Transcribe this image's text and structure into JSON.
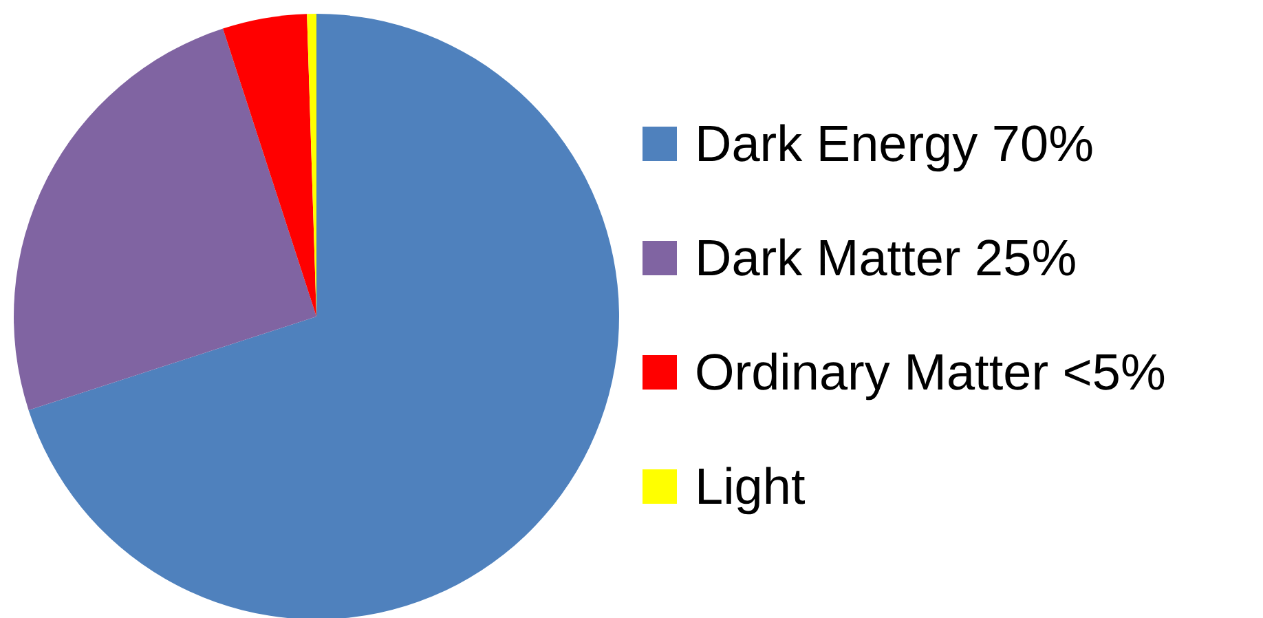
{
  "chart_data": {
    "type": "pie",
    "categories": [
      "Dark Energy 70%",
      "Dark Matter 25%",
      "Ordinary Matter <5%",
      "Light"
    ],
    "values": [
      70,
      25,
      4.5,
      0.5
    ],
    "colors": [
      "#4f81bd",
      "#8064a2",
      "#ff0000",
      "#ffff00"
    ],
    "legend": "right"
  }
}
